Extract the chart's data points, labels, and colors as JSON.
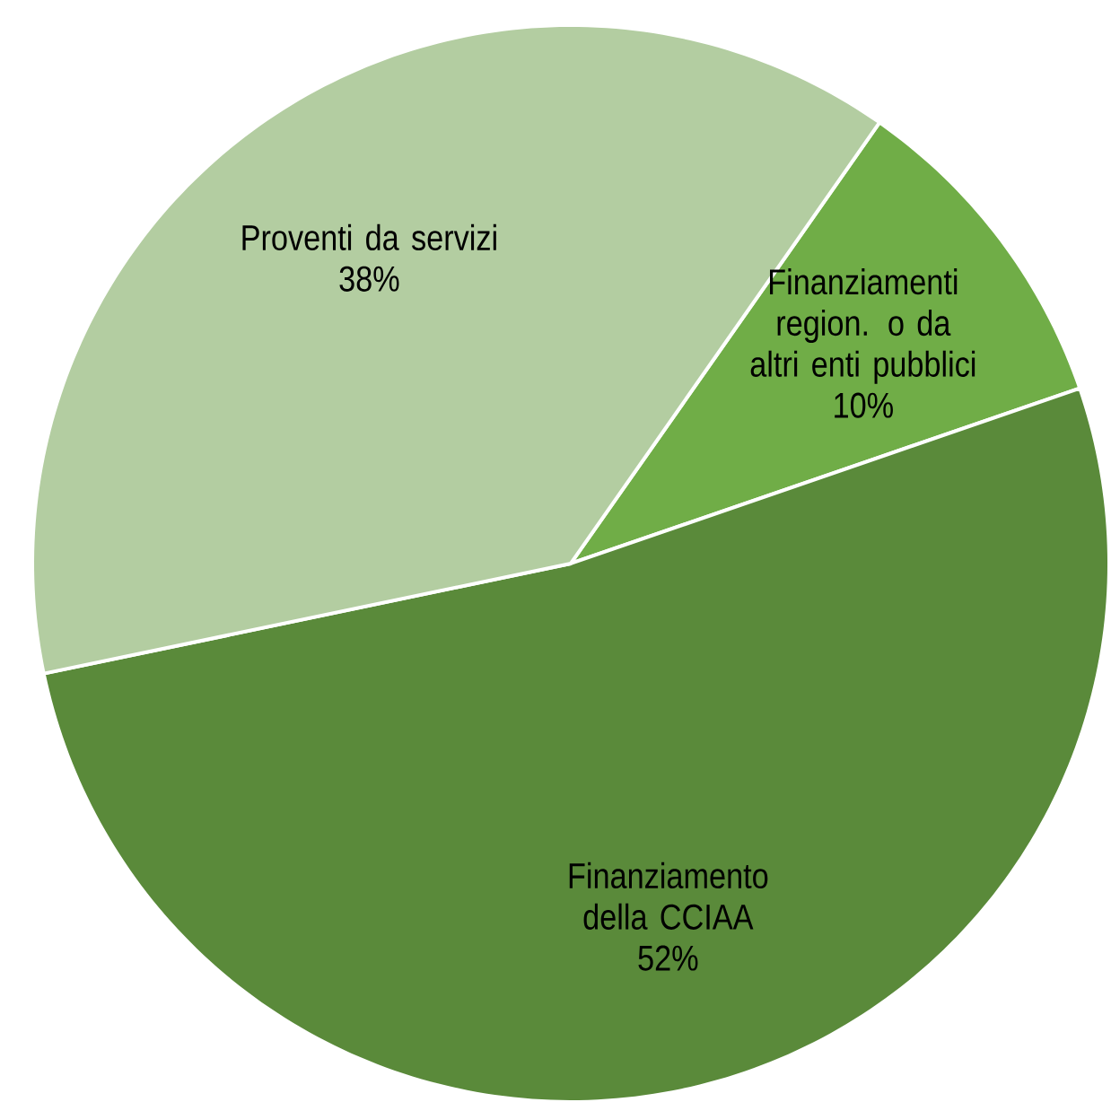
{
  "chart_data": {
    "type": "pie",
    "categories": [
      "Finanziamenti region. o da altri enti pubblici",
      "Finanziamento della CCIAA",
      "Proventi da servizi"
    ],
    "values": [
      10,
      52,
      38
    ],
    "value_labels": [
      "10%",
      "52%",
      "38%"
    ],
    "colors": [
      "#70ad47",
      "#5a8a3a",
      "#b3cda1"
    ]
  }
}
